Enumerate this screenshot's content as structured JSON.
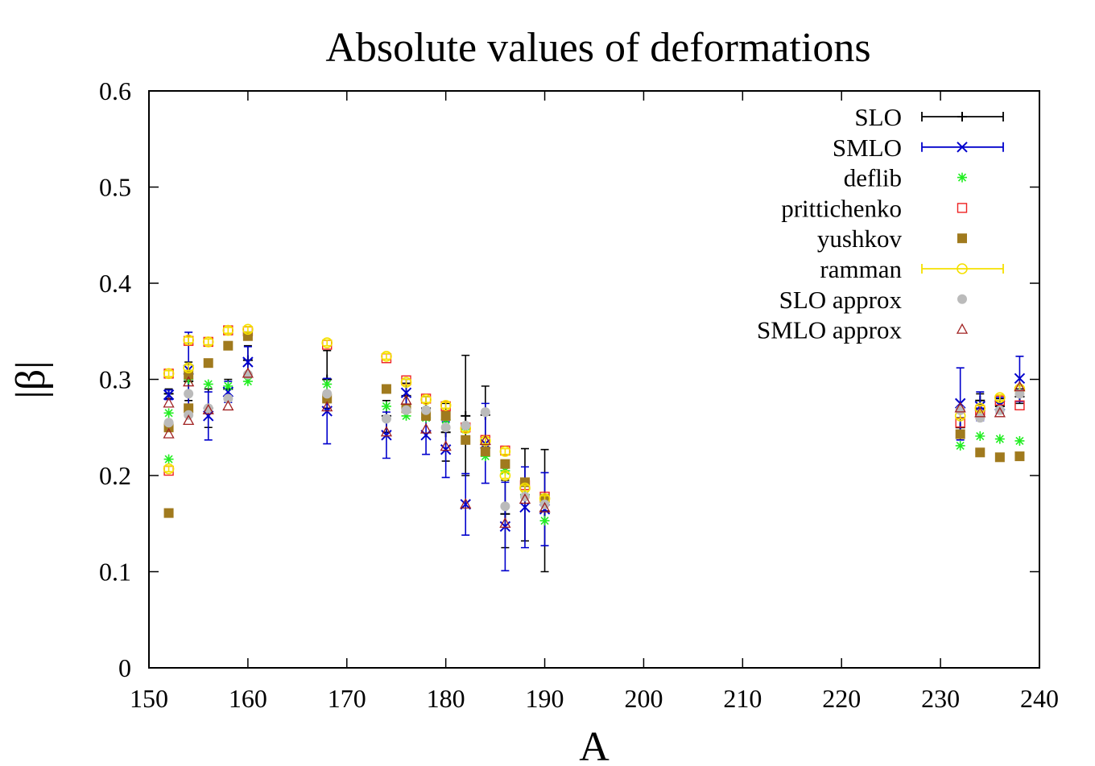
{
  "chart_data": {
    "type": "scatter",
    "title": "Absolute values of deformations",
    "xlabel": "A",
    "ylabel": "|β|",
    "xlim": [
      150,
      240
    ],
    "ylim": [
      0,
      0.6
    ],
    "xticks": [
      150,
      160,
      170,
      180,
      190,
      200,
      210,
      220,
      230,
      240
    ],
    "yticks": [
      0,
      0.1,
      0.2,
      0.3,
      0.4,
      0.5,
      0.6
    ],
    "xtick_labels": [
      "150",
      "160",
      "170",
      "180",
      "190",
      "200",
      "210",
      "220",
      "230",
      "240"
    ],
    "ytick_labels": [
      "0",
      "0.1",
      "0.2",
      "0.3",
      "0.4",
      "0.5",
      "0.6"
    ],
    "grid": false,
    "legend_position": "top-right",
    "series": [
      {
        "name": "SLO",
        "marker": "plus",
        "color": "#000000",
        "error_bars": true,
        "points": [
          {
            "x": 152,
            "y": 0.285,
            "lo": 0.28,
            "hi": 0.29
          },
          {
            "x": 154,
            "y": 0.298,
            "lo": 0.278,
            "hi": 0.318
          },
          {
            "x": 156,
            "y": 0.27,
            "lo": 0.25,
            "hi": 0.29
          },
          {
            "x": 158,
            "y": 0.29,
            "lo": 0.28,
            "hi": 0.3
          },
          {
            "x": 160,
            "y": 0.32,
            "lo": 0.305,
            "hi": 0.335
          },
          {
            "x": 168,
            "y": 0.3,
            "lo": 0.27,
            "hi": 0.33
          },
          {
            "x": 174,
            "y": 0.262,
            "lo": 0.245,
            "hi": 0.278
          },
          {
            "x": 176,
            "y": 0.283,
            "lo": 0.27,
            "hi": 0.296
          },
          {
            "x": 178,
            "y": 0.27,
            "lo": 0.258,
            "hi": 0.282
          },
          {
            "x": 180,
            "y": 0.245,
            "lo": 0.215,
            "hi": 0.275
          },
          {
            "x": 182,
            "y": 0.262,
            "lo": 0.2,
            "hi": 0.325
          },
          {
            "x": 184,
            "y": 0.263,
            "lo": 0.232,
            "hi": 0.293
          },
          {
            "x": 186,
            "y": 0.16,
            "lo": 0.125,
            "hi": 0.195
          },
          {
            "x": 188,
            "y": 0.18,
            "lo": 0.132,
            "hi": 0.228
          },
          {
            "x": 190,
            "y": 0.163,
            "lo": 0.1,
            "hi": 0.227
          },
          {
            "x": 232,
            "y": 0.25,
            "lo": 0.24,
            "hi": 0.26
          },
          {
            "x": 234,
            "y": 0.278,
            "lo": 0.27,
            "hi": 0.285
          },
          {
            "x": 236,
            "y": 0.272,
            "lo": 0.265,
            "hi": 0.28
          },
          {
            "x": 238,
            "y": 0.282,
            "lo": 0.275,
            "hi": 0.29
          }
        ]
      },
      {
        "name": "SMLO",
        "marker": "cross",
        "color": "#0000cc",
        "error_bars": true,
        "points": [
          {
            "x": 152,
            "y": 0.284,
            "lo": 0.279,
            "hi": 0.289
          },
          {
            "x": 154,
            "y": 0.31,
            "lo": 0.272,
            "hi": 0.349
          },
          {
            "x": 156,
            "y": 0.262,
            "lo": 0.237,
            "hi": 0.287
          },
          {
            "x": 158,
            "y": 0.287,
            "lo": 0.276,
            "hi": 0.298
          },
          {
            "x": 160,
            "y": 0.318,
            "lo": 0.302,
            "hi": 0.334
          },
          {
            "x": 168,
            "y": 0.267,
            "lo": 0.233,
            "hi": 0.301
          },
          {
            "x": 174,
            "y": 0.242,
            "lo": 0.218,
            "hi": 0.266
          },
          {
            "x": 176,
            "y": 0.286,
            "lo": 0.272,
            "hi": 0.3
          },
          {
            "x": 178,
            "y": 0.242,
            "lo": 0.222,
            "hi": 0.262
          },
          {
            "x": 180,
            "y": 0.227,
            "lo": 0.198,
            "hi": 0.256
          },
          {
            "x": 182,
            "y": 0.17,
            "lo": 0.138,
            "hi": 0.202
          },
          {
            "x": 184,
            "y": 0.233,
            "lo": 0.192,
            "hi": 0.275
          },
          {
            "x": 186,
            "y": 0.147,
            "lo": 0.101,
            "hi": 0.193
          },
          {
            "x": 188,
            "y": 0.167,
            "lo": 0.125,
            "hi": 0.209
          },
          {
            "x": 190,
            "y": 0.165,
            "lo": 0.127,
            "hi": 0.203
          },
          {
            "x": 232,
            "y": 0.275,
            "lo": 0.237,
            "hi": 0.312
          },
          {
            "x": 234,
            "y": 0.272,
            "lo": 0.257,
            "hi": 0.287
          },
          {
            "x": 236,
            "y": 0.273,
            "lo": 0.265,
            "hi": 0.281
          },
          {
            "x": 238,
            "y": 0.301,
            "lo": 0.277,
            "hi": 0.324
          }
        ]
      },
      {
        "name": "deflib",
        "marker": "star",
        "color": "#22ee22",
        "points": [
          {
            "x": 152,
            "y": 0.265
          },
          {
            "x": 152,
            "y": 0.217
          },
          {
            "x": 154,
            "y": 0.3
          },
          {
            "x": 156,
            "y": 0.295
          },
          {
            "x": 158,
            "y": 0.293
          },
          {
            "x": 160,
            "y": 0.298
          },
          {
            "x": 168,
            "y": 0.295
          },
          {
            "x": 174,
            "y": 0.272
          },
          {
            "x": 176,
            "y": 0.262
          },
          {
            "x": 178,
            "y": 0.26
          },
          {
            "x": 180,
            "y": 0.258
          },
          {
            "x": 182,
            "y": 0.248
          },
          {
            "x": 184,
            "y": 0.22
          },
          {
            "x": 186,
            "y": 0.205
          },
          {
            "x": 188,
            "y": 0.18
          },
          {
            "x": 190,
            "y": 0.153
          },
          {
            "x": 232,
            "y": 0.231
          },
          {
            "x": 234,
            "y": 0.241
          },
          {
            "x": 236,
            "y": 0.238
          },
          {
            "x": 238,
            "y": 0.236
          }
        ]
      },
      {
        "name": "prittichenko",
        "marker": "open-square",
        "color": "#ee2222",
        "points": [
          {
            "x": 152,
            "y": 0.306
          },
          {
            "x": 152,
            "y": 0.205
          },
          {
            "x": 154,
            "y": 0.34
          },
          {
            "x": 156,
            "y": 0.339
          },
          {
            "x": 158,
            "y": 0.351
          },
          {
            "x": 160,
            "y": 0.35
          },
          {
            "x": 168,
            "y": 0.336
          },
          {
            "x": 174,
            "y": 0.322
          },
          {
            "x": 176,
            "y": 0.299
          },
          {
            "x": 178,
            "y": 0.28
          },
          {
            "x": 180,
            "y": 0.272
          },
          {
            "x": 182,
            "y": 0.25
          },
          {
            "x": 184,
            "y": 0.237
          },
          {
            "x": 186,
            "y": 0.226
          },
          {
            "x": 188,
            "y": 0.19
          },
          {
            "x": 190,
            "y": 0.178
          },
          {
            "x": 232,
            "y": 0.255
          },
          {
            "x": 234,
            "y": 0.268
          },
          {
            "x": 236,
            "y": 0.278
          },
          {
            "x": 238,
            "y": 0.273
          }
        ]
      },
      {
        "name": "yushkov",
        "marker": "filled-square",
        "color": "#a07a1e",
        "points": [
          {
            "x": 152,
            "y": 0.25
          },
          {
            "x": 152,
            "y": 0.161
          },
          {
            "x": 154,
            "y": 0.27
          },
          {
            "x": 154,
            "y": 0.305
          },
          {
            "x": 156,
            "y": 0.317
          },
          {
            "x": 158,
            "y": 0.335
          },
          {
            "x": 160,
            "y": 0.345
          },
          {
            "x": 168,
            "y": 0.28
          },
          {
            "x": 174,
            "y": 0.29
          },
          {
            "x": 176,
            "y": 0.27
          },
          {
            "x": 178,
            "y": 0.262
          },
          {
            "x": 180,
            "y": 0.262
          },
          {
            "x": 182,
            "y": 0.237
          },
          {
            "x": 184,
            "y": 0.225
          },
          {
            "x": 186,
            "y": 0.212
          },
          {
            "x": 188,
            "y": 0.193
          },
          {
            "x": 190,
            "y": 0.176
          },
          {
            "x": 232,
            "y": 0.243
          },
          {
            "x": 234,
            "y": 0.224
          },
          {
            "x": 236,
            "y": 0.219
          },
          {
            "x": 238,
            "y": 0.22
          }
        ]
      },
      {
        "name": "ramman",
        "marker": "open-circle",
        "color": "#f5e000",
        "error_bars": true,
        "points": [
          {
            "x": 152,
            "y": 0.306,
            "lo": 0.303,
            "hi": 0.309
          },
          {
            "x": 152,
            "y": 0.207,
            "lo": 0.204,
            "hi": 0.21
          },
          {
            "x": 154,
            "y": 0.341,
            "lo": 0.338,
            "hi": 0.344
          },
          {
            "x": 154,
            "y": 0.312,
            "lo": 0.309,
            "hi": 0.315
          },
          {
            "x": 156,
            "y": 0.339,
            "lo": 0.336,
            "hi": 0.342
          },
          {
            "x": 158,
            "y": 0.351,
            "lo": 0.348,
            "hi": 0.354
          },
          {
            "x": 160,
            "y": 0.352,
            "lo": 0.349,
            "hi": 0.355
          },
          {
            "x": 168,
            "y": 0.338,
            "lo": 0.335,
            "hi": 0.341
          },
          {
            "x": 174,
            "y": 0.324,
            "lo": 0.321,
            "hi": 0.327
          },
          {
            "x": 176,
            "y": 0.297,
            "lo": 0.294,
            "hi": 0.3
          },
          {
            "x": 178,
            "y": 0.279,
            "lo": 0.276,
            "hi": 0.282
          },
          {
            "x": 180,
            "y": 0.273,
            "lo": 0.27,
            "hi": 0.276
          },
          {
            "x": 182,
            "y": 0.249,
            "lo": 0.246,
            "hi": 0.252
          },
          {
            "x": 184,
            "y": 0.236,
            "lo": 0.233,
            "hi": 0.239
          },
          {
            "x": 186,
            "y": 0.225,
            "lo": 0.222,
            "hi": 0.228
          },
          {
            "x": 186,
            "y": 0.2,
            "lo": 0.197,
            "hi": 0.203
          },
          {
            "x": 188,
            "y": 0.187,
            "lo": 0.184,
            "hi": 0.19
          },
          {
            "x": 190,
            "y": 0.176,
            "lo": 0.173,
            "hi": 0.179
          },
          {
            "x": 232,
            "y": 0.262,
            "lo": 0.259,
            "hi": 0.265
          },
          {
            "x": 234,
            "y": 0.27,
            "lo": 0.267,
            "hi": 0.273
          },
          {
            "x": 236,
            "y": 0.281,
            "lo": 0.278,
            "hi": 0.284
          },
          {
            "x": 238,
            "y": 0.29,
            "lo": 0.287,
            "hi": 0.293
          }
        ]
      },
      {
        "name": "SLO approx",
        "marker": "filled-circle",
        "color": "#bbbbbb",
        "points": [
          {
            "x": 152,
            "y": 0.255
          },
          {
            "x": 154,
            "y": 0.285
          },
          {
            "x": 154,
            "y": 0.263
          },
          {
            "x": 156,
            "y": 0.27
          },
          {
            "x": 158,
            "y": 0.28
          },
          {
            "x": 160,
            "y": 0.305
          },
          {
            "x": 168,
            "y": 0.285
          },
          {
            "x": 174,
            "y": 0.259
          },
          {
            "x": 176,
            "y": 0.268
          },
          {
            "x": 178,
            "y": 0.268
          },
          {
            "x": 180,
            "y": 0.25
          },
          {
            "x": 182,
            "y": 0.252
          },
          {
            "x": 184,
            "y": 0.266
          },
          {
            "x": 186,
            "y": 0.168
          },
          {
            "x": 188,
            "y": 0.178
          },
          {
            "x": 190,
            "y": 0.17
          },
          {
            "x": 232,
            "y": 0.268
          },
          {
            "x": 234,
            "y": 0.26
          },
          {
            "x": 236,
            "y": 0.268
          },
          {
            "x": 238,
            "y": 0.285
          }
        ]
      },
      {
        "name": "SMLO approx",
        "marker": "open-triangle",
        "color": "#a02020",
        "points": [
          {
            "x": 152,
            "y": 0.275
          },
          {
            "x": 152,
            "y": 0.243
          },
          {
            "x": 154,
            "y": 0.297
          },
          {
            "x": 154,
            "y": 0.257
          },
          {
            "x": 156,
            "y": 0.268
          },
          {
            "x": 158,
            "y": 0.272
          },
          {
            "x": 160,
            "y": 0.306
          },
          {
            "x": 168,
            "y": 0.271
          },
          {
            "x": 174,
            "y": 0.245
          },
          {
            "x": 176,
            "y": 0.278
          },
          {
            "x": 178,
            "y": 0.248
          },
          {
            "x": 180,
            "y": 0.23
          },
          {
            "x": 182,
            "y": 0.17
          },
          {
            "x": 184,
            "y": 0.236
          },
          {
            "x": 186,
            "y": 0.15
          },
          {
            "x": 188,
            "y": 0.175
          },
          {
            "x": 190,
            "y": 0.166
          },
          {
            "x": 232,
            "y": 0.27
          },
          {
            "x": 234,
            "y": 0.265
          },
          {
            "x": 236,
            "y": 0.265
          },
          {
            "x": 238,
            "y": 0.292
          }
        ]
      }
    ]
  }
}
